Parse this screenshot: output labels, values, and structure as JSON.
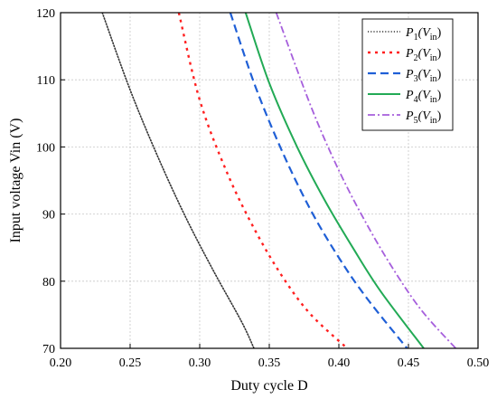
{
  "chart_data": {
    "type": "line",
    "xlabel": "Duty cycle D",
    "ylabel": "Input voltage Vin (V)",
    "xlim": [
      0.2,
      0.5
    ],
    "ylim": [
      70,
      120
    ],
    "xticks": [
      "0.20",
      "0.25",
      "0.30",
      "0.35",
      "0.40",
      "0.45",
      "0.50"
    ],
    "yticks": [
      "70",
      "80",
      "90",
      "100",
      "110",
      "120"
    ],
    "grid": true,
    "legend_position": "top-right",
    "series": [
      {
        "name": "P1(Vin)",
        "label_main": "P",
        "label_sub1": "1",
        "label_open": "(V",
        "label_sub2": "in",
        "label_close": ")",
        "color": "#333333",
        "dash": "dotted",
        "x": [
          0.23,
          0.25,
          0.27,
          0.29,
          0.31,
          0.33,
          0.339
        ],
        "y": [
          120,
          108.5,
          98.5,
          89.5,
          81.5,
          74.0,
          70
        ]
      },
      {
        "name": "P2(Vin)",
        "label_main": "P",
        "label_sub1": "2",
        "label_open": "(V",
        "label_sub2": "in",
        "label_close": ")",
        "color": "#ff2020",
        "dash": "short-dash",
        "x": [
          0.285,
          0.3,
          0.32,
          0.34,
          0.36,
          0.38,
          0.406
        ],
        "y": [
          120,
          107.0,
          96.0,
          87.5,
          80.5,
          75.0,
          70
        ]
      },
      {
        "name": "P3(Vin)",
        "label_main": "P",
        "label_sub1": "3",
        "label_open": "(V",
        "label_sub2": "in",
        "label_close": ")",
        "color": "#1f5fd6",
        "dash": "dashed",
        "x": [
          0.322,
          0.34,
          0.36,
          0.38,
          0.4,
          0.42,
          0.449
        ],
        "y": [
          120,
          109.0,
          99.0,
          90.5,
          83.5,
          77.5,
          70
        ]
      },
      {
        "name": "P4(Vin)",
        "label_main": "P",
        "label_sub1": "4",
        "label_open": "(V",
        "label_sub2": "in",
        "label_close": ")",
        "color": "#22aa55",
        "dash": "solid",
        "x": [
          0.333,
          0.35,
          0.37,
          0.39,
          0.41,
          0.43,
          0.461
        ],
        "y": [
          120,
          109.5,
          100.0,
          92.0,
          85.0,
          78.5,
          70
        ]
      },
      {
        "name": "P5(Vin)",
        "label_main": "P",
        "label_sub1": "5",
        "label_open": "(V",
        "label_sub2": "in",
        "label_close": ")",
        "color": "#a65fdc",
        "dash": "dash-dot",
        "x": [
          0.355,
          0.38,
          0.4,
          0.42,
          0.44,
          0.46,
          0.484
        ],
        "y": [
          120,
          106.0,
          96.5,
          88.5,
          81.5,
          75.5,
          70
        ]
      }
    ]
  }
}
